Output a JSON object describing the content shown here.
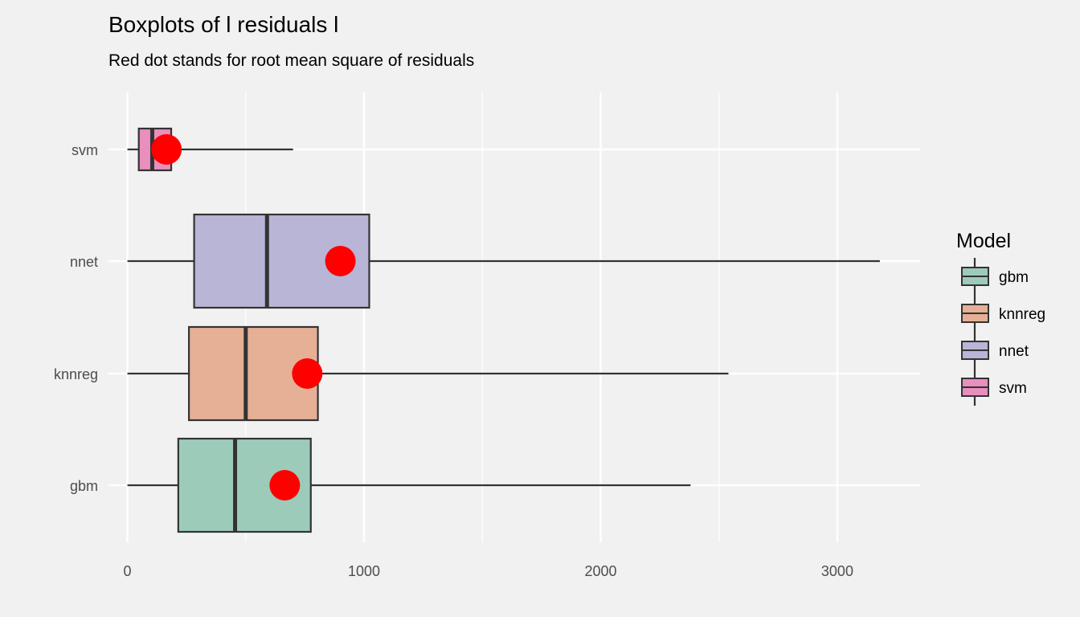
{
  "chart_data": {
    "type": "boxplot",
    "orientation": "horizontal",
    "title": "Boxplots of l residuals l",
    "subtitle": "Red dot stands for root mean square of residuals",
    "xlabel": "",
    "ylabel": "",
    "xlim": [
      -80,
      3350
    ],
    "x_ticks": [
      0,
      1000,
      2000,
      3000
    ],
    "x_tick_labels": [
      "0",
      "1000",
      "2000",
      "3000"
    ],
    "grid": true,
    "categories": [
      "gbm",
      "knnreg",
      "nnet",
      "svm"
    ],
    "boxes": [
      {
        "name": "gbm",
        "min": 0,
        "q1": 215,
        "median": 455,
        "q3": 775,
        "max": 2380,
        "rms": 665
      },
      {
        "name": "knnreg",
        "min": 0,
        "q1": 260,
        "median": 500,
        "q3": 805,
        "max": 2540,
        "rms": 760
      },
      {
        "name": "nnet",
        "min": 0,
        "q1": 282,
        "median": 590,
        "q3": 1022,
        "max": 3180,
        "rms": 900
      },
      {
        "name": "svm",
        "min": 0,
        "q1": 48,
        "median": 105,
        "q3": 185,
        "max": 700,
        "rms": 165
      }
    ],
    "dot_color": "#ff0000",
    "legend": {
      "title": "Model",
      "position": "right",
      "entries": [
        "gbm",
        "knnreg",
        "nnet",
        "svm"
      ]
    },
    "colors": {
      "gbm": "#9dcbba",
      "knnreg": "#e5b096",
      "nnet": "#b8b5d6",
      "svm": "#e88fbd"
    }
  }
}
